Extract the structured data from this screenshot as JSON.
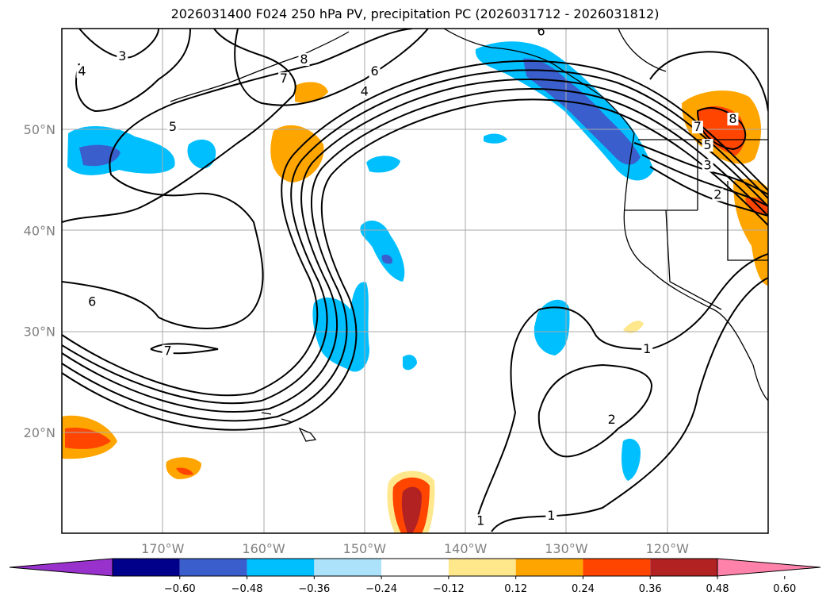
{
  "title": "2026031400 F024 250 hPa PV, precipitation PC (2026031712 - 2026031812)",
  "map": {
    "lon_range": [
      -180,
      -110
    ],
    "lat_range": [
      10,
      60
    ],
    "lon_ticks": [
      {
        "value": -170,
        "label": "170°W"
      },
      {
        "value": -160,
        "label": "160°W"
      },
      {
        "value": -150,
        "label": "150°W"
      },
      {
        "value": -140,
        "label": "140°W"
      },
      {
        "value": -130,
        "label": "130°W"
      },
      {
        "value": -120,
        "label": "120°W"
      }
    ],
    "lat_ticks": [
      {
        "value": 20,
        "label": "20°N"
      },
      {
        "value": 30,
        "label": "30°N"
      },
      {
        "value": 40,
        "label": "40°N"
      },
      {
        "value": 50,
        "label": "50°N"
      }
    ],
    "contour_labels": [
      {
        "text": "3",
        "lon": -174,
        "lat": 57
      },
      {
        "text": "4",
        "lon": -178,
        "lat": 55.5
      },
      {
        "text": "5",
        "lon": -169,
        "lat": 50
      },
      {
        "text": "6",
        "lon": -177,
        "lat": 32.7
      },
      {
        "text": "7",
        "lon": -169.5,
        "lat": 27.8
      },
      {
        "text": "8",
        "lon": -156,
        "lat": 56.7
      },
      {
        "text": "7",
        "lon": -158,
        "lat": 54.8
      },
      {
        "text": "6",
        "lon": -149,
        "lat": 55.5
      },
      {
        "text": "4",
        "lon": -150,
        "lat": 53.5
      },
      {
        "text": "6",
        "lon": -132.5,
        "lat": 59.5
      },
      {
        "text": "7",
        "lon": -117,
        "lat": 50
      },
      {
        "text": "8",
        "lon": -113.5,
        "lat": 50.8
      },
      {
        "text": "5",
        "lon": -116,
        "lat": 48.2
      },
      {
        "text": "3",
        "lon": -116,
        "lat": 46.2
      },
      {
        "text": "2",
        "lon": -115,
        "lat": 43.3
      },
      {
        "text": "1",
        "lon": -122,
        "lat": 28
      },
      {
        "text": "2",
        "lon": -125.5,
        "lat": 21
      },
      {
        "text": "1",
        "lon": -131.5,
        "lat": 11.5
      },
      {
        "text": "1",
        "lon": -138.5,
        "lat": 11
      }
    ],
    "colors": {
      "purple": "#9932CC",
      "navy": "#00008B",
      "royal": "#3A5FCD",
      "deepsky": "#00BFFF",
      "lightblue": "#ADE3FA",
      "white": "#FFFFFF",
      "yellow": "#FFE78C",
      "orange": "#FFA500",
      "orangered": "#FF4500",
      "firebrick": "#B22222",
      "pink": "#FF82AB"
    }
  },
  "colorbar": {
    "bins": [
      "#9932CC",
      "#00008B",
      "#3A5FCD",
      "#00BFFF",
      "#ADE3FA",
      "#FFFFFF",
      "#FFE78C",
      "#FFA500",
      "#FF4500",
      "#B22222",
      "#FF82AB"
    ],
    "ticks": [
      "−0.60",
      "−0.48",
      "−0.36",
      "−0.24",
      "−0.12",
      "0.12",
      "0.24",
      "0.36",
      "0.48",
      "0.60"
    ]
  }
}
